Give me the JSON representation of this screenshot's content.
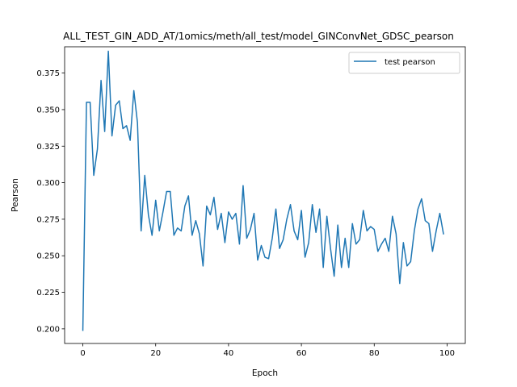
{
  "chart_data": {
    "type": "line",
    "title": "ALL_TEST_GIN_ADD_AT/1omics/meth/all_test/model_GINConvNet_GDSC_pearson",
    "xlabel": "Epoch",
    "ylabel": "Pearson",
    "xlim": [
      -5,
      105
    ],
    "ylim": [
      0.19,
      0.393
    ],
    "xticks": [
      0,
      20,
      40,
      60,
      80,
      100
    ],
    "yticks": [
      0.2,
      0.225,
      0.25,
      0.275,
      0.3,
      0.325,
      0.35,
      0.375
    ],
    "ytick_labels": [
      "0.200",
      "0.225",
      "0.250",
      "0.275",
      "0.300",
      "0.325",
      "0.350",
      "0.375"
    ],
    "grid": false,
    "legend_position": "top-right",
    "series": [
      {
        "name": "test pearson",
        "color": "#1f77b4",
        "x": [
          0,
          1,
          2,
          3,
          4,
          5,
          6,
          7,
          8,
          9,
          10,
          11,
          12,
          13,
          14,
          15,
          16,
          17,
          18,
          19,
          20,
          21,
          22,
          23,
          24,
          25,
          26,
          27,
          28,
          29,
          30,
          31,
          32,
          33,
          34,
          35,
          36,
          37,
          38,
          39,
          40,
          41,
          42,
          43,
          44,
          45,
          46,
          47,
          48,
          49,
          50,
          51,
          52,
          53,
          54,
          55,
          56,
          57,
          58,
          59,
          60,
          61,
          62,
          63,
          64,
          65,
          66,
          67,
          68,
          69,
          70,
          71,
          72,
          73,
          74,
          75,
          76,
          77,
          78,
          79,
          80,
          81,
          82,
          83,
          84,
          85,
          86,
          87,
          88,
          89,
          90,
          91,
          92,
          93,
          94,
          95,
          96,
          97,
          98,
          99
        ],
        "values": [
          0.199,
          0.355,
          0.355,
          0.305,
          0.323,
          0.37,
          0.335,
          0.39,
          0.332,
          0.353,
          0.356,
          0.337,
          0.339,
          0.329,
          0.363,
          0.341,
          0.267,
          0.305,
          0.278,
          0.264,
          0.288,
          0.267,
          0.28,
          0.294,
          0.294,
          0.264,
          0.269,
          0.267,
          0.284,
          0.291,
          0.264,
          0.274,
          0.265,
          0.243,
          0.284,
          0.278,
          0.29,
          0.268,
          0.279,
          0.259,
          0.28,
          0.275,
          0.279,
          0.258,
          0.298,
          0.262,
          0.268,
          0.279,
          0.247,
          0.257,
          0.249,
          0.248,
          0.262,
          0.282,
          0.255,
          0.261,
          0.275,
          0.285,
          0.267,
          0.261,
          0.281,
          0.249,
          0.259,
          0.285,
          0.266,
          0.282,
          0.242,
          0.277,
          0.255,
          0.236,
          0.271,
          0.242,
          0.262,
          0.242,
          0.272,
          0.258,
          0.261,
          0.281,
          0.267,
          0.27,
          0.268,
          0.253,
          0.258,
          0.262,
          0.253,
          0.277,
          0.265,
          0.231,
          0.259,
          0.243,
          0.246,
          0.267,
          0.282,
          0.289,
          0.274,
          0.272,
          0.253,
          0.267,
          0.279,
          0.265
        ]
      }
    ]
  }
}
